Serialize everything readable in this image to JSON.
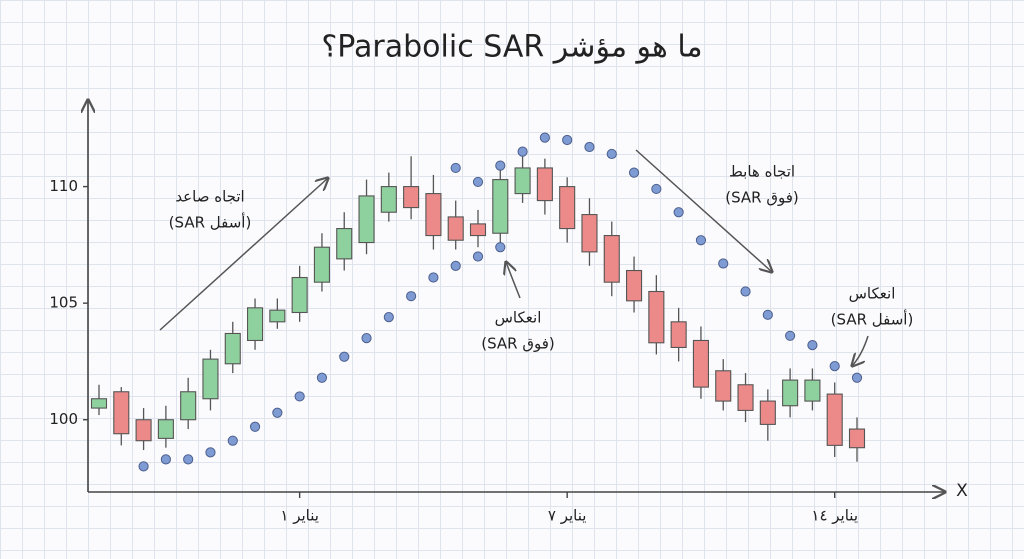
{
  "chart_data": {
    "type": "candlestick",
    "title": "ما هو مؤشر Parabolic SAR؟",
    "x_label": "X",
    "categories": [
      null,
      null,
      null,
      null,
      null,
      null,
      null,
      null,
      null,
      "يناير ١",
      null,
      null,
      null,
      null,
      null,
      null,
      null,
      null,
      null,
      null,
      null,
      "يناير ٧",
      null,
      null,
      null,
      null,
      null,
      null,
      null,
      null,
      null,
      null,
      null,
      "يناير ١٤",
      null
    ],
    "open": [
      100.5,
      101.2,
      100.0,
      99.2,
      100.0,
      100.9,
      102.4,
      103.4,
      104.2,
      104.6,
      105.9,
      106.9,
      107.6,
      108.9,
      110.0,
      109.7,
      108.7,
      108.4,
      108.0,
      109.7,
      110.8,
      110.0,
      108.8,
      107.9,
      106.4,
      105.5,
      104.2,
      103.4,
      102.1,
      101.5,
      100.8,
      100.6,
      100.8,
      101.1,
      99.6
    ],
    "high": [
      101.5,
      101.4,
      100.5,
      100.6,
      101.8,
      103.0,
      104.2,
      105.2,
      105.2,
      106.6,
      108.0,
      108.9,
      110.3,
      110.6,
      111.3,
      110.5,
      109.4,
      109.0,
      110.8,
      111.5,
      111.2,
      110.4,
      109.5,
      108.5,
      107.0,
      106.2,
      104.8,
      104.0,
      102.6,
      102.0,
      101.3,
      102.2,
      102.2,
      101.6,
      100.1
    ],
    "low": [
      100.2,
      98.9,
      98.7,
      98.8,
      99.6,
      100.4,
      102.0,
      103.0,
      103.9,
      104.2,
      105.5,
      106.4,
      107.1,
      108.5,
      108.6,
      107.3,
      107.3,
      107.4,
      107.6,
      109.3,
      108.8,
      107.6,
      106.6,
      105.3,
      104.6,
      102.8,
      102.5,
      100.9,
      100.4,
      99.9,
      99.1,
      100.1,
      100.4,
      98.4,
      98.2
    ],
    "close": [
      100.9,
      99.4,
      99.1,
      100.0,
      101.2,
      102.6,
      103.7,
      104.8,
      104.7,
      106.1,
      107.4,
      108.2,
      109.6,
      110.0,
      109.1,
      107.9,
      107.7,
      107.9,
      110.3,
      110.8,
      109.4,
      108.2,
      107.2,
      105.9,
      105.1,
      103.3,
      103.1,
      101.4,
      100.8,
      100.4,
      99.8,
      101.7,
      101.7,
      98.9,
      98.8
    ],
    "up_color": "#8fd19e",
    "down_color": "#ec8a8a",
    "sar_below": [
      null,
      null,
      98.0,
      98.3,
      98.3,
      98.6,
      99.1,
      99.7,
      100.3,
      101.0,
      101.8,
      102.7,
      103.5,
      104.4,
      105.3,
      106.1,
      106.6,
      107.0,
      107.4,
      null,
      null,
      null,
      null,
      null,
      null,
      null,
      null,
      null,
      null,
      null,
      null,
      null,
      null,
      null,
      null
    ],
    "sar_above": [
      null,
      null,
      null,
      null,
      null,
      null,
      null,
      null,
      null,
      null,
      null,
      null,
      null,
      null,
      null,
      null,
      110.8,
      110.2,
      110.9,
      111.5,
      112.1,
      112.0,
      111.7,
      111.4,
      110.6,
      109.9,
      108.9,
      107.7,
      106.7,
      105.5,
      104.5,
      103.6,
      103.2,
      102.3,
      101.8
    ],
    "sar_color": "#7f9bd4",
    "ylim": [
      96.9,
      113.5
    ],
    "yticks": [
      100,
      105,
      110
    ],
    "annotations": [
      {
        "title": "اتجاه صاعد",
        "note": "(SAR أسفل)"
      },
      {
        "title": "انعكاس",
        "note": "(SAR فوق)"
      },
      {
        "title": "اتجاه هابط",
        "note": "(SAR فوق)"
      },
      {
        "title": "انعكاس",
        "note": "(SAR أسفل)"
      }
    ]
  }
}
